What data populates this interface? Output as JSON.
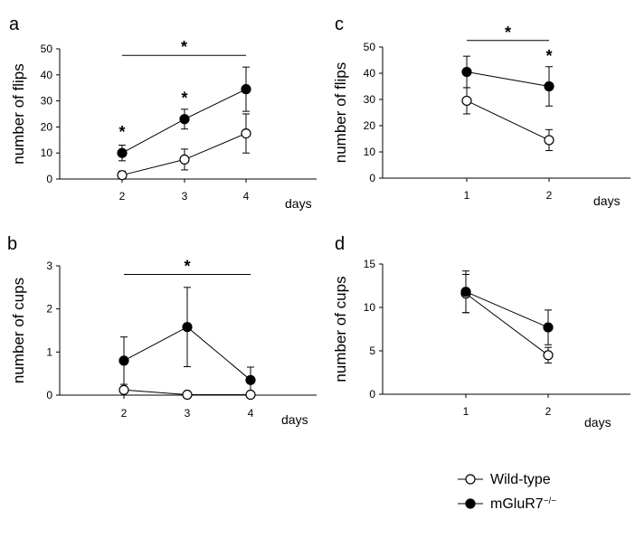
{
  "legend": [
    {
      "key": "wt",
      "label": "Wild-type"
    },
    {
      "key": "ko",
      "label": "mGluR7",
      "sup": "−/−"
    }
  ],
  "chart_data": [
    {
      "panel": "a",
      "type": "line",
      "ylabel": "number of flips",
      "xlabel": "days",
      "x": [
        "2",
        "3",
        "4"
      ],
      "yticks": [
        0,
        10,
        20,
        30,
        40,
        50
      ],
      "ylim": [
        0,
        50
      ],
      "series": [
        {
          "key": "wt",
          "values": [
            1.5,
            7.5,
            17.5
          ],
          "err": [
            1.5,
            4,
            7.5
          ],
          "marker": "open"
        },
        {
          "key": "ko",
          "values": [
            10,
            23,
            34.5
          ],
          "err": [
            3,
            3.8,
            8.5
          ],
          "marker": "filled"
        }
      ],
      "annotations": [
        {
          "type": "bar",
          "x1": "2",
          "x2": "4",
          "y": 47.5,
          "text": "*"
        },
        {
          "type": "mark",
          "x": "2",
          "y": 16,
          "text": "*"
        },
        {
          "type": "mark",
          "x": "3",
          "y": 29,
          "text": "*"
        }
      ]
    },
    {
      "panel": "b",
      "type": "line",
      "ylabel": "number of cups",
      "xlabel": "days",
      "x": [
        "2",
        "3",
        "4"
      ],
      "yticks": [
        0,
        1,
        2,
        3
      ],
      "ylim": [
        0,
        3
      ],
      "series": [
        {
          "key": "wt",
          "values": [
            0.12,
            0.01,
            0.01
          ],
          "err": [
            0,
            0,
            0
          ],
          "marker": "open"
        },
        {
          "key": "ko",
          "values": [
            0.8,
            1.58,
            0.35
          ],
          "err": [
            0.55,
            0.92,
            0.3
          ],
          "marker": "filled"
        }
      ],
      "annotations": [
        {
          "type": "bar",
          "x1": "2",
          "x2": "4",
          "y": 2.8,
          "text": "*"
        }
      ]
    },
    {
      "panel": "c",
      "type": "line",
      "ylabel": "number of flips",
      "xlabel": "days",
      "x": [
        "1",
        "2"
      ],
      "yticks": [
        0,
        10,
        20,
        30,
        40,
        50
      ],
      "ylim": [
        0,
        50
      ],
      "series": [
        {
          "key": "wt",
          "values": [
            29.5,
            14.5
          ],
          "err": [
            5,
            4
          ],
          "marker": "open"
        },
        {
          "key": "ko",
          "values": [
            40.5,
            35
          ],
          "err": [
            6,
            7.5
          ],
          "marker": "filled"
        }
      ],
      "annotations": [
        {
          "type": "bar",
          "x1": "1",
          "x2": "2",
          "y": 52.5,
          "text": "*"
        },
        {
          "type": "mark",
          "x": "2",
          "y": 44.5,
          "text": "*"
        }
      ]
    },
    {
      "panel": "d",
      "type": "line",
      "ylabel": "number of cups",
      "xlabel": "days",
      "x": [
        "1",
        "2"
      ],
      "yticks": [
        0,
        5,
        10,
        15
      ],
      "ylim": [
        0,
        15
      ],
      "series": [
        {
          "key": "wt",
          "values": [
            11.6,
            4.5
          ],
          "err": [
            2.2,
            0.9
          ],
          "marker": "open"
        },
        {
          "key": "ko",
          "values": [
            11.8,
            7.7
          ],
          "err": [
            2.4,
            2
          ],
          "marker": "filled"
        }
      ],
      "annotations": []
    }
  ]
}
